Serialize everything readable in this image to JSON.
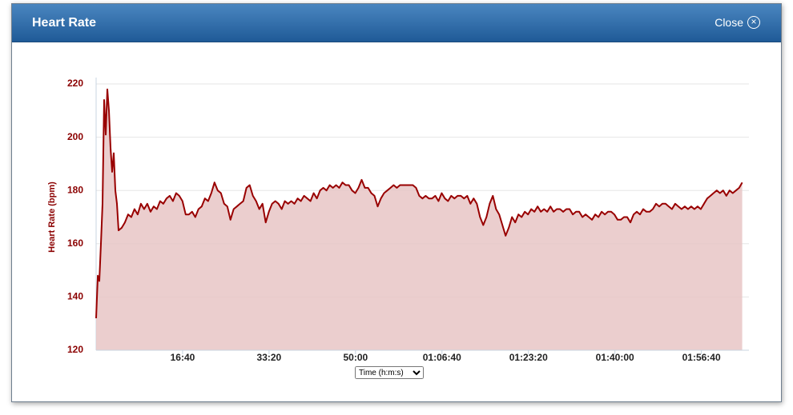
{
  "header": {
    "title": "Heart Rate",
    "close": "Close"
  },
  "chart_data": {
    "type": "area",
    "ylabel": "Heart Rate (bpm)",
    "xlabel": "Time (h:m:s)",
    "color": "#990000",
    "fill": "#e8c6c6",
    "grid": true,
    "ylim": [
      120,
      220
    ],
    "yticks": [
      120,
      140,
      160,
      180,
      200,
      220
    ],
    "xlim": [
      0,
      7550
    ],
    "xticks": [
      {
        "value": 1000,
        "label": "16:40"
      },
      {
        "value": 2000,
        "label": "33:20"
      },
      {
        "value": 3000,
        "label": "50:00"
      },
      {
        "value": 4000,
        "label": "01:06:40"
      },
      {
        "value": 5000,
        "label": "01:23:20"
      },
      {
        "value": 6000,
        "label": "01:40:00"
      },
      {
        "value": 7000,
        "label": "01:56:40"
      }
    ],
    "x": [
      0,
      19,
      37,
      56,
      74,
      93,
      111,
      130,
      148,
      167,
      185,
      204,
      222,
      241,
      259,
      296,
      333,
      370,
      407,
      444,
      481,
      518,
      555,
      592,
      629,
      666,
      703,
      740,
      777,
      814,
      851,
      888,
      925,
      962,
      999,
      1036,
      1073,
      1110,
      1147,
      1184,
      1221,
      1258,
      1295,
      1332,
      1369,
      1406,
      1443,
      1480,
      1517,
      1554,
      1591,
      1628,
      1665,
      1702,
      1739,
      1776,
      1813,
      1850,
      1887,
      1924,
      1961,
      1998,
      2035,
      2072,
      2109,
      2146,
      2183,
      2220,
      2257,
      2294,
      2331,
      2368,
      2405,
      2442,
      2479,
      2516,
      2553,
      2590,
      2627,
      2664,
      2701,
      2738,
      2775,
      2812,
      2849,
      2886,
      2923,
      2960,
      2997,
      3034,
      3071,
      3108,
      3145,
      3182,
      3219,
      3256,
      3293,
      3330,
      3367,
      3404,
      3441,
      3478,
      3515,
      3552,
      3589,
      3626,
      3663,
      3700,
      3737,
      3774,
      3811,
      3848,
      3885,
      3922,
      3959,
      3996,
      4033,
      4070,
      4107,
      4144,
      4181,
      4218,
      4255,
      4292,
      4329,
      4366,
      4403,
      4440,
      4477,
      4514,
      4551,
      4588,
      4625,
      4662,
      4699,
      4736,
      4773,
      4810,
      4847,
      4884,
      4921,
      4958,
      4995,
      5032,
      5069,
      5106,
      5143,
      5180,
      5217,
      5254,
      5291,
      5328,
      5365,
      5402,
      5439,
      5476,
      5513,
      5550,
      5587,
      5624,
      5661,
      5698,
      5735,
      5772,
      5809,
      5846,
      5883,
      5920,
      5957,
      5994,
      6031,
      6068,
      6105,
      6142,
      6179,
      6216,
      6253,
      6290,
      6327,
      6364,
      6401,
      6438,
      6475,
      6512,
      6549,
      6586,
      6623,
      6660,
      6697,
      6734,
      6771,
      6808,
      6845,
      6882,
      6919,
      6956,
      6993,
      7030,
      7067,
      7104,
      7141,
      7178,
      7215,
      7252,
      7289,
      7326,
      7363,
      7400,
      7437,
      7472
    ],
    "values": [
      132,
      148,
      146,
      160,
      175,
      214,
      201,
      218,
      210,
      196,
      187,
      194,
      180,
      175,
      165,
      166,
      168,
      171,
      170,
      173,
      171,
      175,
      173,
      175,
      172,
      174,
      173,
      176,
      175,
      177,
      178,
      176,
      179,
      178,
      176,
      171,
      171,
      172,
      170,
      173,
      174,
      177,
      176,
      179,
      183,
      180,
      179,
      175,
      174,
      169,
      173,
      174,
      175,
      176,
      181,
      182,
      178,
      176,
      173,
      175,
      168,
      172,
      175,
      176,
      175,
      173,
      176,
      175,
      176,
      175,
      177,
      176,
      178,
      177,
      176,
      179,
      177,
      180,
      181,
      180,
      182,
      181,
      182,
      181,
      183,
      182,
      182,
      180,
      179,
      181,
      184,
      181,
      181,
      179,
      178,
      174,
      177,
      179,
      180,
      181,
      182,
      181,
      182,
      182,
      182,
      182,
      182,
      181,
      178,
      177,
      178,
      177,
      177,
      178,
      176,
      179,
      177,
      176,
      178,
      177,
      178,
      178,
      177,
      178,
      175,
      177,
      175,
      170,
      167,
      170,
      175,
      178,
      173,
      171,
      167,
      163,
      166,
      170,
      168,
      171,
      170,
      172,
      171,
      173,
      172,
      174,
      172,
      173,
      172,
      174,
      172,
      173,
      173,
      172,
      173,
      173,
      171,
      172,
      172,
      170,
      171,
      170,
      169,
      171,
      170,
      172,
      171,
      172,
      172,
      171,
      169,
      169,
      170,
      170,
      168,
      171,
      172,
      171,
      173,
      172,
      172,
      173,
      175,
      174,
      175,
      175,
      174,
      173,
      175,
      174,
      173,
      174,
      173,
      174,
      173,
      174,
      173,
      175,
      177,
      178,
      179,
      180,
      179,
      180,
      178,
      180,
      179,
      180,
      181,
      183
    ]
  }
}
